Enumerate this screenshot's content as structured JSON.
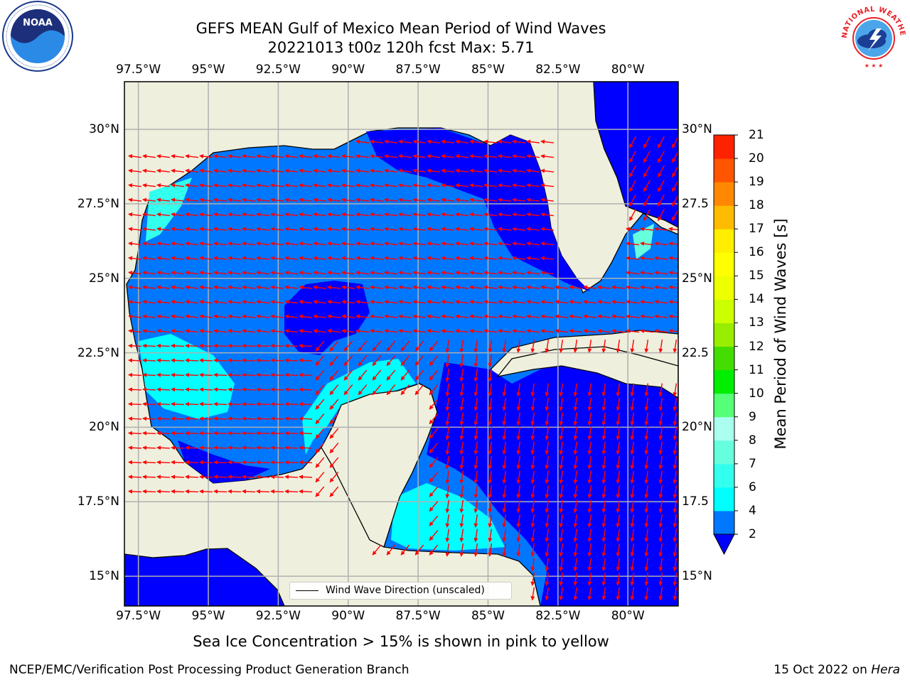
{
  "title": {
    "line1": "GEFS MEAN Gulf of Mexico Mean Period of Wind Waves",
    "line2": "20221013 t00z 120h fcst   Max: 5.71"
  },
  "map": {
    "lon_ticks": [
      "97.5°W",
      "95°W",
      "92.5°W",
      "90°W",
      "87.5°W",
      "85°W",
      "82.5°W",
      "80°W"
    ],
    "lon_values": [
      -97.5,
      -95,
      -92.5,
      -90,
      -87.5,
      -85,
      -82.5,
      -80
    ],
    "lat_ticks_left": [
      "30°N",
      "27.5°N",
      "25°N",
      "22.5°N",
      "20°N",
      "17.5°N",
      "15°N"
    ],
    "lat_ticks_right": [
      "30°N",
      "27.5",
      "25°N",
      "22.5",
      "20°N",
      "17.5",
      "15°N"
    ],
    "lat_values": [
      30,
      27.5,
      25,
      22.5,
      20,
      17.5,
      15
    ],
    "extent": {
      "lon_min": -98,
      "lon_max": -78.2,
      "lat_min": 14,
      "lat_max": 31.6
    }
  },
  "colorbar": {
    "label": "Mean Period of Wind Waves [s]",
    "ticks": [
      "2",
      "4",
      "6",
      "7",
      "8",
      "9",
      "10",
      "11",
      "12",
      "13",
      "14",
      "15",
      "16",
      "17",
      "18",
      "19",
      "20",
      "21"
    ],
    "colors": [
      "#0077ff",
      "#00ffff",
      "#33ffee",
      "#66ffdd",
      "#aaffee",
      "#55ff77",
      "#00ee00",
      "#44dd00",
      "#99ee00",
      "#ccff00",
      "#eeff00",
      "#ffff00",
      "#ffee00",
      "#ffbb00",
      "#ff8800",
      "#ff5500",
      "#ff2200",
      "#ff0000"
    ],
    "under_color": "#0000ff"
  },
  "legend": {
    "label": "Wind Wave Direction (unscaled)"
  },
  "footer": {
    "note": "Sea Ice Concentration > 15% is shown in pink to yellow",
    "left": "NCEP/EMC/Verification Post Processing Product Generation Branch",
    "right_date": "15 Oct 2022 on ",
    "right_host": "Hera"
  },
  "colors": {
    "land": "#efefdd",
    "water_low": "#0000ff",
    "water_mid": "#0077ff",
    "water_high": "#00ffff",
    "arrow": "#ff0000",
    "grid": "#b0b0b0"
  },
  "logos": {
    "noaa": "NOAA",
    "nws": "NATIONAL WEATHER SERVICE"
  }
}
